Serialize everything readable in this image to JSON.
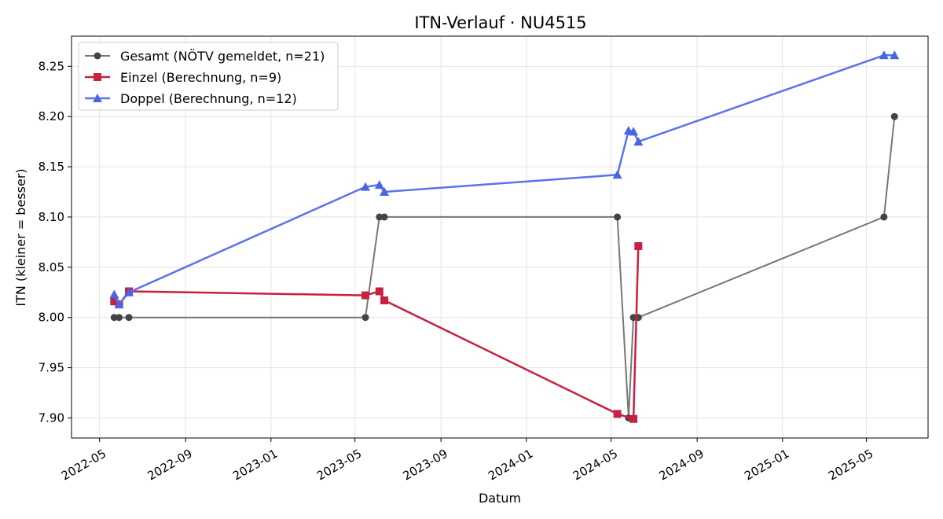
{
  "chart_data": {
    "type": "line",
    "title": "ITN-Verlauf · NU4515",
    "xlabel": "Datum",
    "ylabel": "ITN  (kleiner = besser)",
    "x_axis": "date",
    "xlim": [
      "2022-03-22",
      "2025-07-28"
    ],
    "ylim": [
      7.88,
      8.28
    ],
    "x_ticks": [
      "2022-05-01",
      "2022-09-01",
      "2023-01-01",
      "2023-05-01",
      "2023-09-01",
      "2024-01-01",
      "2024-05-01",
      "2024-09-01",
      "2025-01-01",
      "2025-05-01"
    ],
    "x_tick_labels": [
      "2022-05",
      "2022-09",
      "2023-01",
      "2023-05",
      "2023-09",
      "2024-01",
      "2024-05",
      "2024-09",
      "2025-01",
      "2025-05"
    ],
    "y_ticks": [
      7.9,
      7.95,
      8.0,
      8.05,
      8.1,
      8.15,
      8.2,
      8.25
    ],
    "y_tick_labels": [
      "7.90",
      "7.95",
      "8.00",
      "8.05",
      "8.10",
      "8.15",
      "8.20",
      "8.25"
    ],
    "grid": true,
    "legend_position": "top-left",
    "series": [
      {
        "name": "Gesamt (NÖTV gemeldet, n=21)",
        "color": "#777777",
        "marker_color": "#444444",
        "marker": "circle",
        "points": [
          {
            "x": "2022-05-22",
            "y": 8.0
          },
          {
            "x": "2022-05-29",
            "y": 8.0
          },
          {
            "x": "2022-06-12",
            "y": 8.0
          },
          {
            "x": "2023-05-16",
            "y": 8.0
          },
          {
            "x": "2023-06-05",
            "y": 8.1
          },
          {
            "x": "2023-06-12",
            "y": 8.1
          },
          {
            "x": "2024-05-10",
            "y": 8.1
          },
          {
            "x": "2024-05-26",
            "y": 7.9
          },
          {
            "x": "2024-06-02",
            "y": 8.0
          },
          {
            "x": "2024-06-09",
            "y": 8.0
          },
          {
            "x": "2025-05-26",
            "y": 8.1
          },
          {
            "x": "2025-06-10",
            "y": 8.2
          }
        ]
      },
      {
        "name": "Einzel (Berechnung, n=9)",
        "color": "#c8203f",
        "marker_color": "#c8203f",
        "marker": "square",
        "points": [
          {
            "x": "2022-05-22",
            "y": 8.016
          },
          {
            "x": "2022-05-29",
            "y": 8.013
          },
          {
            "x": "2022-06-12",
            "y": 8.026
          },
          {
            "x": "2023-05-16",
            "y": 8.022
          },
          {
            "x": "2023-06-05",
            "y": 8.026
          },
          {
            "x": "2023-06-12",
            "y": 8.017
          },
          {
            "x": "2024-05-10",
            "y": 7.904
          },
          {
            "x": "2024-06-02",
            "y": 7.899
          },
          {
            "x": "2024-06-09",
            "y": 8.071
          }
        ]
      },
      {
        "name": "Doppel (Berechnung, n=12)",
        "color": "#5b73e8",
        "marker_color": "#4a64e6",
        "marker": "triangle",
        "points": [
          {
            "x": "2022-05-22",
            "y": 8.023
          },
          {
            "x": "2022-05-29",
            "y": 8.013
          },
          {
            "x": "2022-06-12",
            "y": 8.025
          },
          {
            "x": "2023-05-16",
            "y": 8.13
          },
          {
            "x": "2023-06-05",
            "y": 8.132
          },
          {
            "x": "2023-06-12",
            "y": 8.125
          },
          {
            "x": "2024-05-10",
            "y": 8.142
          },
          {
            "x": "2024-05-26",
            "y": 8.186
          },
          {
            "x": "2024-06-02",
            "y": 8.185
          },
          {
            "x": "2024-06-09",
            "y": 8.175
          },
          {
            "x": "2025-05-26",
            "y": 8.261
          },
          {
            "x": "2025-06-10",
            "y": 8.261
          }
        ]
      }
    ]
  }
}
